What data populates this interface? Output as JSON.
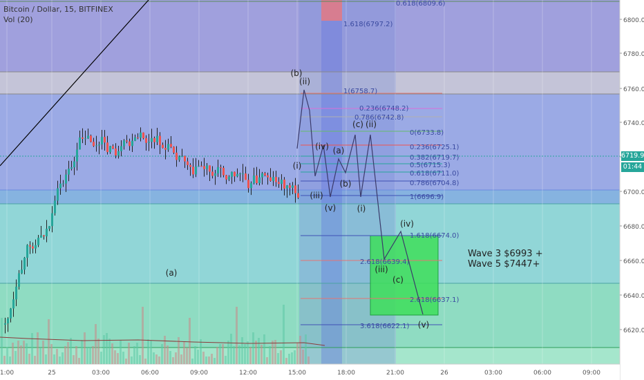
{
  "header": {
    "symbol": "Bitcoin / Dollar, 15, BITFINEX",
    "indicator": "Vol (20)"
  },
  "price_axis": {
    "ticks": [
      "6800.0",
      "6780.0",
      "6760.0",
      "6740.0",
      "6720.0",
      "6700.0",
      "6680.0",
      "6660.0",
      "6640.0",
      "6620.0"
    ],
    "last_price": "6719.9",
    "countdown": "01:44",
    "last_price_color": "#26a69a",
    "countdown_color": "#26a69a"
  },
  "time_axis": {
    "ticks": [
      "1:00",
      "25",
      "03:00",
      "06:00",
      "09:00",
      "12:00",
      "15:00",
      "18:00",
      "21:00",
      "26",
      "03:00",
      "06:00",
      "09:00"
    ]
  },
  "fib_labels": [
    "0.618(6809.6)",
    "1.618(6797.2)",
    "1(6758.7)",
    "0.236(6748.2)",
    "0.786(6742.8)",
    "0(6733.8)",
    "0.236(6725.1)",
    "0.382(6719.7)",
    "0.5(6715.3)",
    "0.618(6711.0)",
    "0.786(6704.8)",
    "1(6696.9)",
    "1.618(6674.0)",
    "2.618(6639.4)",
    "2.618(6637.1)",
    "3.618(6622.1)"
  ],
  "wave_labels": [
    "(a)",
    "(b)",
    "(ii)",
    "(i)",
    "(iv)",
    "(a)",
    "(b)",
    "(iii)",
    "(v)",
    "(i)",
    "(c)",
    "(ii)",
    "(iv)",
    "(iii)",
    "(c)",
    "(v)"
  ],
  "notes": [
    "Wave 3 $6993 +",
    "Wave 5 $7447+"
  ],
  "colors": {
    "up_candle": "#26a69a",
    "down_candle": "#ef5350",
    "bullish_box": "#3ede5a",
    "band_purple": "#7b7bd0",
    "band_teal": "#7ecfd0",
    "band_red": "#e07b87"
  }
}
